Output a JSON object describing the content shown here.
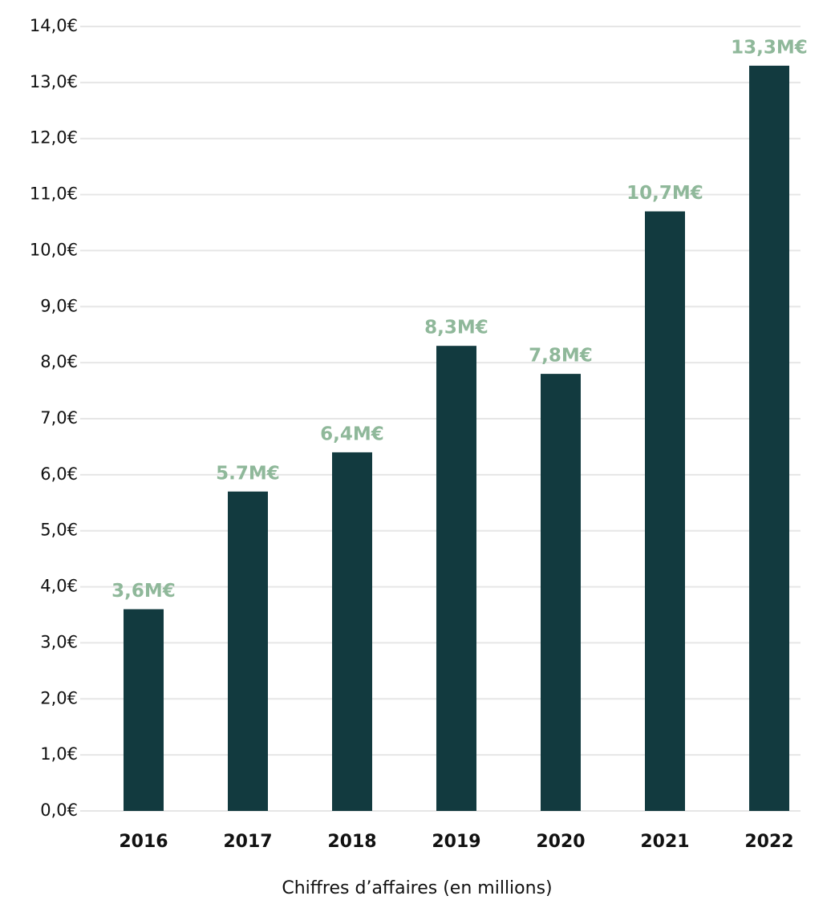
{
  "chart_data": {
    "type": "bar",
    "categories": [
      "2016",
      "2017",
      "2018",
      "2019",
      "2020",
      "2021",
      "2022"
    ],
    "values": [
      3.6,
      5.7,
      6.4,
      8.3,
      7.8,
      10.7,
      13.3
    ],
    "value_labels": [
      "3,6M€",
      "5.7M€",
      "6,4M€",
      "8,3M€",
      "7,8M€",
      "10,7M€",
      "13,3M€"
    ],
    "color": "#123a3f",
    "label_color": "#8fb89a",
    "x_label": "Chiffres d’affaires (en millions)",
    "ylim": [
      0,
      14
    ],
    "yticks": [
      {
        "value": 0,
        "label": "0,0€"
      },
      {
        "value": 1,
        "label": "1,0€"
      },
      {
        "value": 2,
        "label": "2,0€"
      },
      {
        "value": 3,
        "label": "3,0€"
      },
      {
        "value": 4,
        "label": "4,0€"
      },
      {
        "value": 5,
        "label": "5,0€"
      },
      {
        "value": 6,
        "label": "6,0€"
      },
      {
        "value": 7,
        "label": "7,0€"
      },
      {
        "value": 8,
        "label": "8,0€"
      },
      {
        "value": 9,
        "label": "9,0€"
      },
      {
        "value": 10,
        "label": "10,0€"
      },
      {
        "value": 11,
        "label": "11,0€"
      },
      {
        "value": 12,
        "label": "12,0€"
      },
      {
        "value": 13,
        "label": "13,0€"
      },
      {
        "value": 14,
        "label": "14,0€"
      }
    ],
    "grid": true
  }
}
